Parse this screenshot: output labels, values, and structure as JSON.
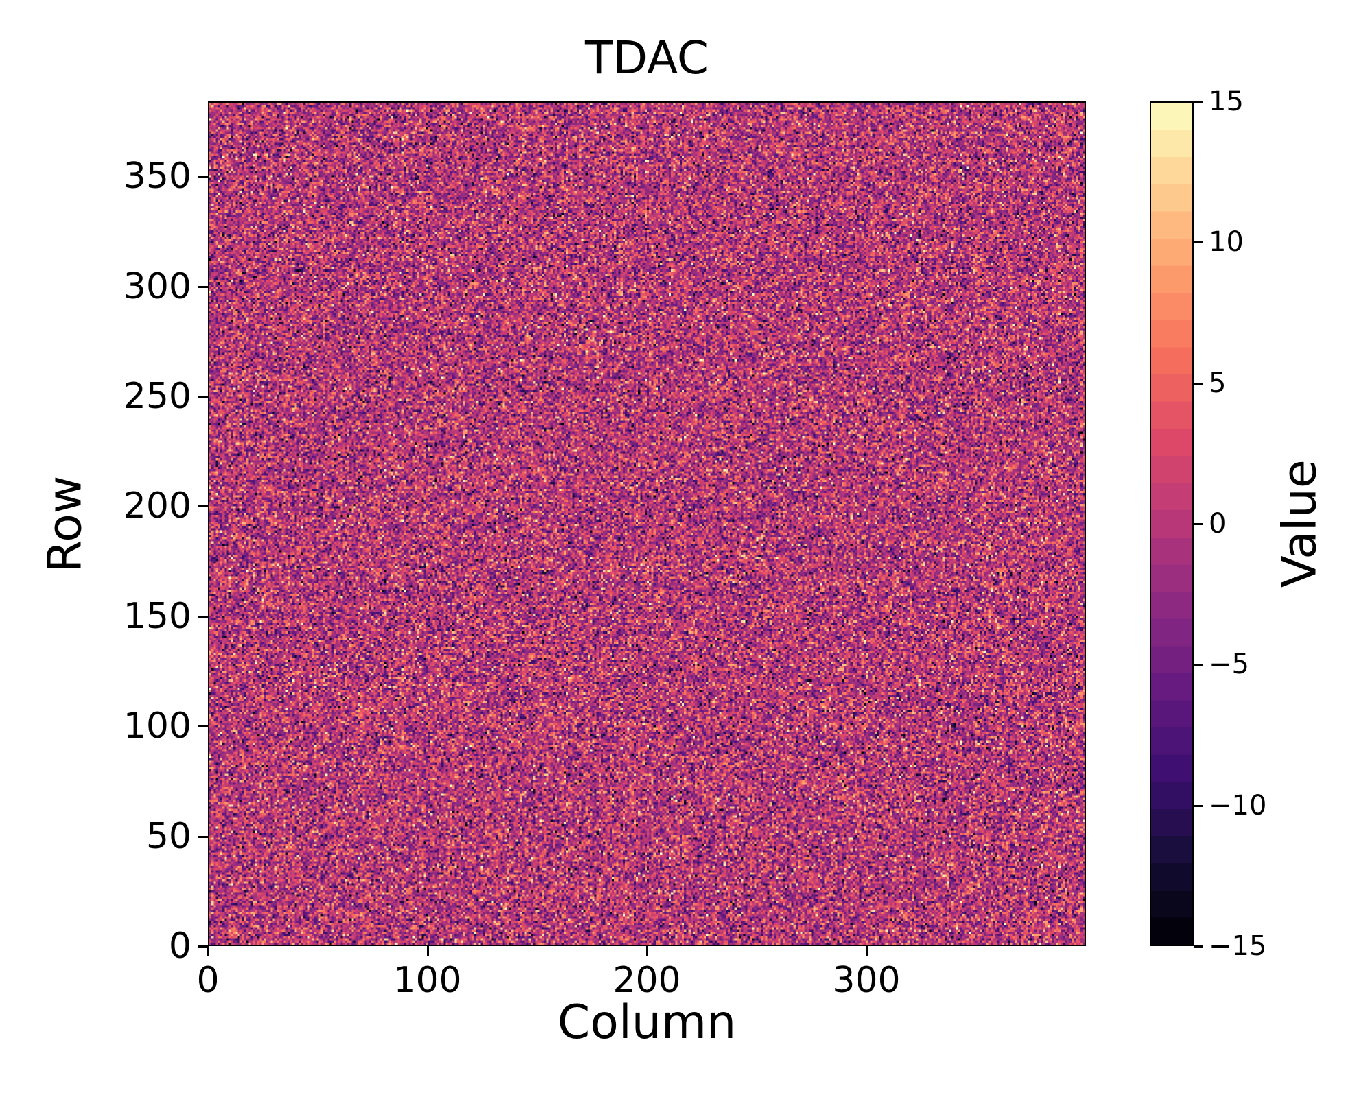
{
  "chart_data": {
    "type": "heatmap",
    "title": "TDAC",
    "xlabel": "Column",
    "ylabel": "Row",
    "grid": {
      "cols": 400,
      "rows": 384
    },
    "x_range": [
      0,
      400
    ],
    "y_range": [
      0,
      384
    ],
    "x_ticks": [
      0,
      100,
      200,
      300
    ],
    "y_ticks": [
      0,
      50,
      100,
      150,
      200,
      250,
      300,
      350
    ],
    "value_range": [
      -15,
      15
    ],
    "colorbar": {
      "label": "Value",
      "ticks": [
        15,
        10,
        5,
        0,
        -5,
        -10,
        -15
      ],
      "levels": 31,
      "orientation": "vertical"
    },
    "colormap": {
      "name": "magma",
      "stops": [
        [
          0.0,
          "#000004"
        ],
        [
          0.1,
          "#140e36"
        ],
        [
          0.2,
          "#3b0f70"
        ],
        [
          0.3,
          "#641a80"
        ],
        [
          0.4,
          "#8c2981"
        ],
        [
          0.5,
          "#b73779"
        ],
        [
          0.6,
          "#de4968"
        ],
        [
          0.7,
          "#f7705c"
        ],
        [
          0.8,
          "#fe9f6d"
        ],
        [
          0.9,
          "#fecf92"
        ],
        [
          1.0,
          "#fcfdbf"
        ]
      ]
    },
    "noise": {
      "distribution": "gaussian",
      "mean": 0,
      "std": 5,
      "integer": true,
      "seed": 42
    },
    "grid_lines": false,
    "origin": "lower"
  },
  "figure": {
    "background": "#ffffff",
    "text_color": "#000000",
    "axis_color": "#000000"
  }
}
